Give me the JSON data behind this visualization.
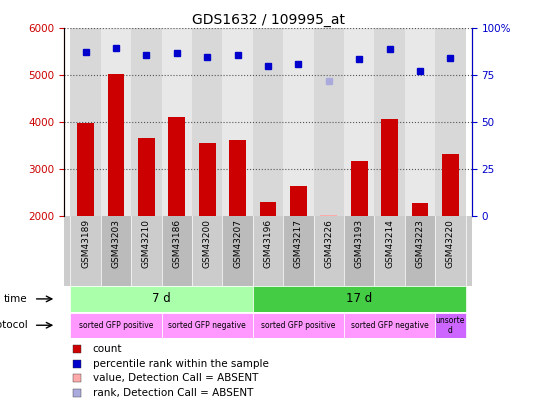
{
  "title": "GDS1632 / 109995_at",
  "samples": [
    "GSM43189",
    "GSM43203",
    "GSM43210",
    "GSM43186",
    "GSM43200",
    "GSM43207",
    "GSM43196",
    "GSM43217",
    "GSM43226",
    "GSM43193",
    "GSM43214",
    "GSM43223",
    "GSM43220"
  ],
  "counts": [
    3980,
    5020,
    3650,
    4100,
    3540,
    3620,
    2300,
    2640,
    2020,
    3160,
    4060,
    2270,
    3320
  ],
  "ranks": [
    5490,
    5570,
    5440,
    5480,
    5380,
    5430,
    5200,
    5230,
    4870,
    5350,
    5550,
    5090,
    5370
  ],
  "absent_value_idx": 8,
  "absent_rank_idx": 8,
  "absent_count": 2020,
  "absent_rank": 4870,
  "ylim_left": [
    2000,
    6000
  ],
  "ylim_right": [
    0,
    100
  ],
  "yticks_left": [
    2000,
    3000,
    4000,
    5000,
    6000
  ],
  "yticks_right": [
    0,
    25,
    50,
    75,
    100
  ],
  "bar_color": "#cc0000",
  "absent_bar_color": "#ffaaaa",
  "rank_color": "#0000cc",
  "absent_rank_color": "#aaaadd",
  "grid_color": "#555555",
  "bg_color": "#ffffff",
  "time_groups": [
    {
      "label": "7 d",
      "start": 0,
      "end": 5,
      "color": "#aaffaa"
    },
    {
      "label": "17 d",
      "start": 6,
      "end": 12,
      "color": "#44cc44"
    }
  ],
  "protocol_groups": [
    {
      "label": "sorted GFP positive",
      "start": 0,
      "end": 2,
      "color": "#ff99ff"
    },
    {
      "label": "sorted GFP negative",
      "start": 3,
      "end": 5,
      "color": "#ff99ff"
    },
    {
      "label": "sorted GFP positive",
      "start": 6,
      "end": 8,
      "color": "#ff99ff"
    },
    {
      "label": "sorted GFP negative",
      "start": 9,
      "end": 11,
      "color": "#ff99ff"
    },
    {
      "label": "unsorte\nd",
      "start": 12,
      "end": 12,
      "color": "#cc66ff"
    }
  ],
  "time_label": "time",
  "protocol_label": "protocol",
  "legend_items": [
    {
      "label": "count",
      "color": "#cc0000"
    },
    {
      "label": "percentile rank within the sample",
      "color": "#0000cc"
    },
    {
      "label": "value, Detection Call = ABSENT",
      "color": "#ffaaaa"
    },
    {
      "label": "rank, Detection Call = ABSENT",
      "color": "#aaaadd"
    }
  ]
}
